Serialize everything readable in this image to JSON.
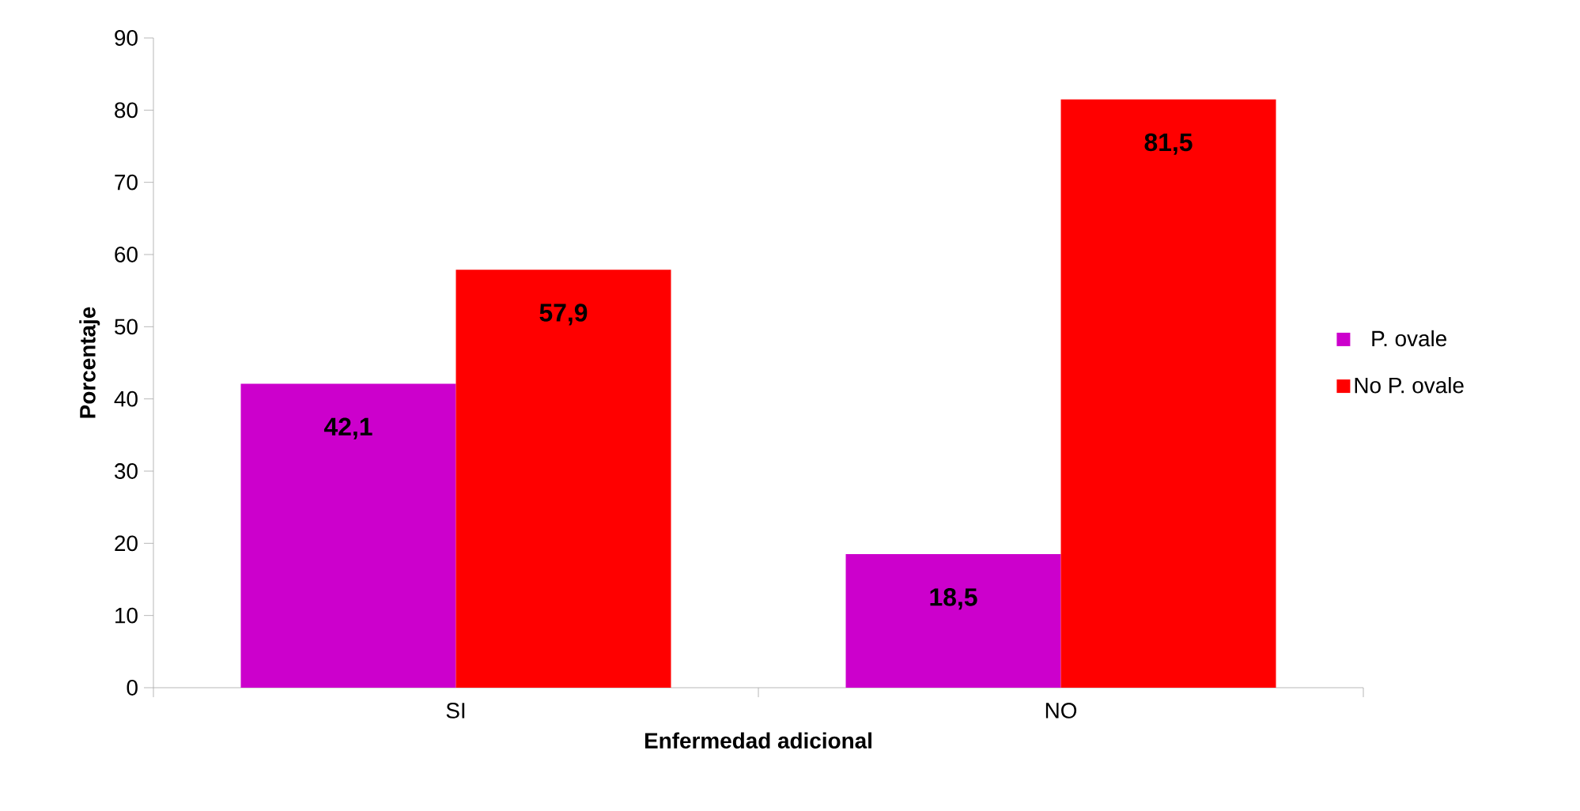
{
  "chart_data": {
    "type": "bar",
    "xlabel": "Enfermedad adicional",
    "ylabel": "Porcentaje",
    "categories": [
      "SI",
      "NO"
    ],
    "ylim": [
      0,
      90
    ],
    "yticks": [
      0,
      10,
      20,
      30,
      40,
      50,
      60,
      70,
      80,
      90
    ],
    "legend": "right",
    "series": [
      {
        "name": "P. ovale",
        "color": "#cc00cc",
        "values": [
          42.1,
          18.5
        ],
        "value_labels": [
          "42,1",
          "18,5"
        ]
      },
      {
        "name": "No P. ovale",
        "color": "#ff0000",
        "values": [
          57.9,
          81.5
        ],
        "value_labels": [
          "57,9",
          "81,5"
        ]
      }
    ]
  }
}
